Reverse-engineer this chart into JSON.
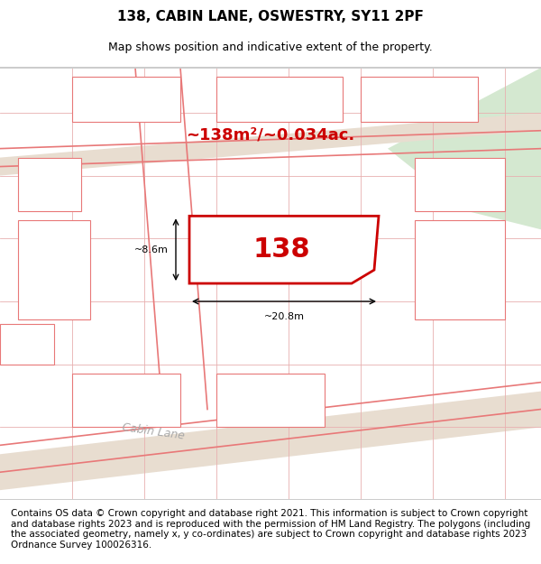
{
  "title_line1": "138, CABIN LANE, OSWESTRY, SY11 2PF",
  "title_line2": "Map shows position and indicative extent of the property.",
  "area_text": "~138m²/~0.034ac.",
  "property_number": "138",
  "dim_width": "~20.8m",
  "dim_height": "~8.6m",
  "footer_text": "Contains OS data © Crown copyright and database right 2021. This information is subject to Crown copyright and database rights 2023 and is reproduced with the permission of HM Land Registry. The polygons (including the associated geometry, namely x, y co-ordinates) are subject to Crown copyright and database rights 2023 Ordnance Survey 100026316.",
  "bg_color": "#f0ede8",
  "map_bg": "#f5f2ee",
  "road_color": "#e8e0d0",
  "property_fill": "#ffffff",
  "property_edge": "#cc0000",
  "grid_line_color": "#e8b0b0",
  "green_area_color": "#d4e8d0",
  "road_label": "Cabin Lane",
  "title_fontsize": 11,
  "subtitle_fontsize": 9,
  "footer_fontsize": 7.5
}
